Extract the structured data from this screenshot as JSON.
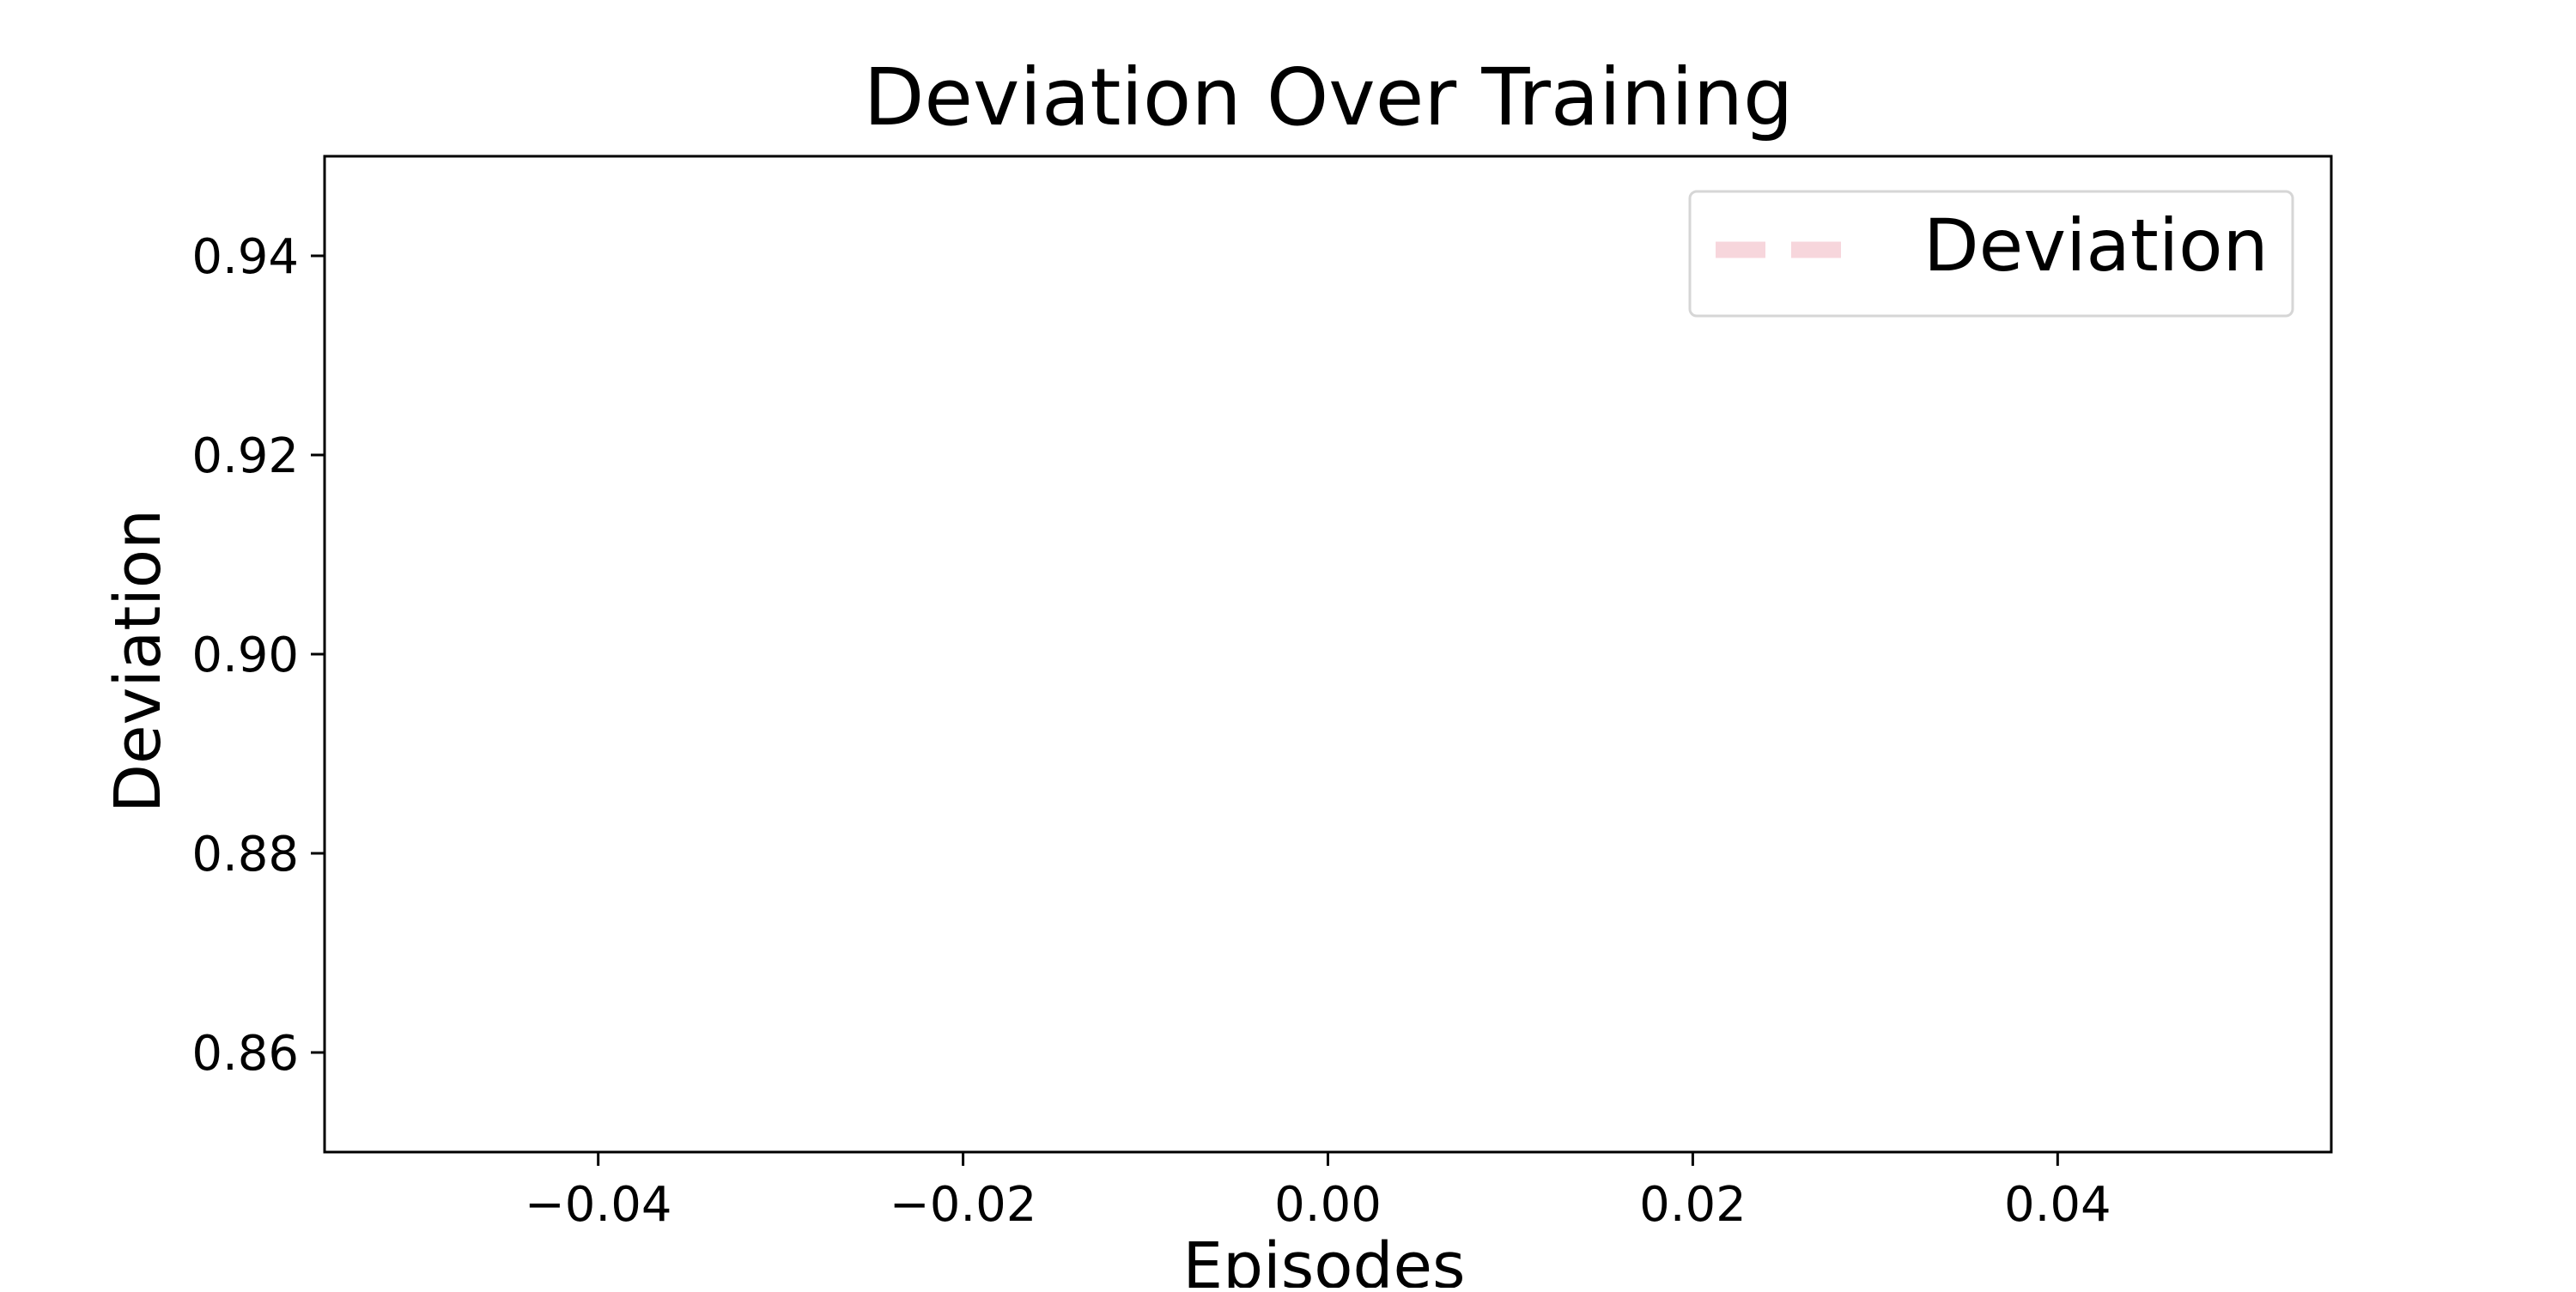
{
  "chart_data": {
    "type": "line",
    "title": "Deviation Over Training",
    "xlabel": "Episodes",
    "ylabel": "Deviation",
    "xlim": [
      -0.055,
      0.055
    ],
    "ylim": [
      0.85,
      0.95
    ],
    "xticks": [
      -0.04,
      -0.02,
      0.0,
      0.02,
      0.04
    ],
    "xtick_labels": [
      "−0.04",
      "−0.02",
      "0.00",
      "0.02",
      "0.04"
    ],
    "yticks": [
      0.86,
      0.88,
      0.9,
      0.92,
      0.94
    ],
    "ytick_labels": [
      "0.86",
      "0.88",
      "0.90",
      "0.92",
      "0.94"
    ],
    "grid": false,
    "legend_position": "top-right",
    "series": [
      {
        "name": "Deviation",
        "color": "#f7d6dc",
        "line_style": "dashed",
        "x": [],
        "y": []
      }
    ]
  }
}
